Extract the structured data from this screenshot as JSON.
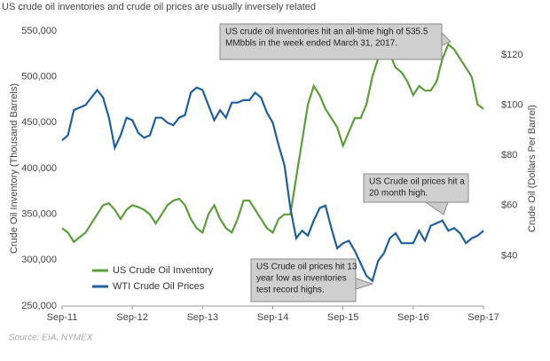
{
  "chart_data": {
    "type": "line",
    "title": "US crude oil inventories and crude oil prices are usually inversely related",
    "y_label": "Crude Oil Inventory  (Thousand  Barrels)",
    "y2_label": "Crude Oil (Dollars Per Barrel)",
    "source": "Source: EIA, NYMEX",
    "categories": [
      "Sep-11",
      null,
      null,
      null,
      null,
      null,
      null,
      null,
      null,
      null,
      null,
      null,
      "Sep-12",
      null,
      null,
      null,
      null,
      null,
      null,
      null,
      null,
      null,
      null,
      null,
      "Sep-13",
      null,
      null,
      null,
      null,
      null,
      null,
      null,
      null,
      null,
      null,
      null,
      "Sep-14",
      null,
      null,
      null,
      null,
      null,
      null,
      null,
      null,
      null,
      null,
      null,
      "Sep-15",
      null,
      null,
      null,
      null,
      null,
      null,
      null,
      null,
      null,
      null,
      null,
      "Sep-16",
      null,
      null,
      null,
      null,
      null,
      null,
      null,
      null,
      null,
      null,
      null,
      "Sep-17"
    ],
    "series": [
      {
        "name": "US Crude Oil Inventory",
        "color": "#5b9e3b",
        "values": [
          335000,
          330000,
          320000,
          325000,
          330000,
          340000,
          350000,
          360000,
          362000,
          355000,
          345000,
          355000,
          360000,
          358000,
          355000,
          350000,
          340000,
          350000,
          360000,
          365000,
          367000,
          360000,
          345000,
          335000,
          330000,
          350000,
          360000,
          345000,
          335000,
          330000,
          345000,
          365000,
          365000,
          355000,
          345000,
          335000,
          330000,
          345000,
          350000,
          350000,
          390000,
          430000,
          470000,
          490000,
          480000,
          465000,
          455000,
          445000,
          425000,
          440000,
          455000,
          455000,
          470000,
          500000,
          520000,
          530000,
          525000,
          510000,
          505000,
          495000,
          480000,
          490000,
          485000,
          485000,
          495000,
          520000,
          535500,
          530000,
          520000,
          510000,
          500000,
          470000,
          465000
        ]
      },
      {
        "name": "WTI Crude Oil Prices",
        "color": "#1f5f9e",
        "axis": "y2",
        "values": [
          86,
          88,
          98,
          99,
          100,
          103,
          106,
          103,
          95,
          83,
          88,
          95,
          94,
          89,
          87,
          88,
          95,
          95,
          93,
          92,
          95,
          96,
          105,
          107,
          106,
          100,
          94,
          98,
          95,
          101,
          101,
          102,
          102,
          105,
          103,
          97,
          93,
          84,
          76,
          59,
          47,
          50,
          48,
          54,
          59,
          60,
          51,
          43,
          45,
          46,
          42,
          37,
          32,
          30,
          38,
          41,
          47,
          49,
          45,
          45,
          45,
          50,
          46,
          52,
          53,
          54,
          50,
          51,
          49,
          45,
          47,
          48,
          50
        ]
      }
    ],
    "ylim": [
      250000,
      550000
    ],
    "yticks": [
      {
        "value": 250000,
        "label": "250,000"
      },
      {
        "value": 300000,
        "label": "300,000"
      },
      {
        "value": 350000,
        "label": "350,000"
      },
      {
        "value": 400000,
        "label": "400,000"
      },
      {
        "value": 450000,
        "label": "450,000"
      },
      {
        "value": 500000,
        "label": "500,000"
      },
      {
        "value": 550000,
        "label": "550,000"
      }
    ],
    "y2lim": [
      20,
      129.5
    ],
    "y2ticks": [
      {
        "value": 40,
        "label": "$40"
      },
      {
        "value": 60,
        "label": "$60"
      },
      {
        "value": 80,
        "label": "$80"
      },
      {
        "value": 100,
        "label": "$100"
      },
      {
        "value": 120,
        "label": "$120"
      }
    ],
    "legend": "lower left",
    "annotations": [
      {
        "lines": [
          "US crude oil inventories hit an all-time high of 535.5",
          "MMbbls in the week ended March 31, 2017."
        ]
      },
      {
        "lines": [
          "US Crude oil prices hit a",
          "20 month high."
        ]
      },
      {
        "lines": [
          "US Crude oil prices hit 13",
          "year low as inventories",
          "test record highs."
        ]
      }
    ]
  }
}
